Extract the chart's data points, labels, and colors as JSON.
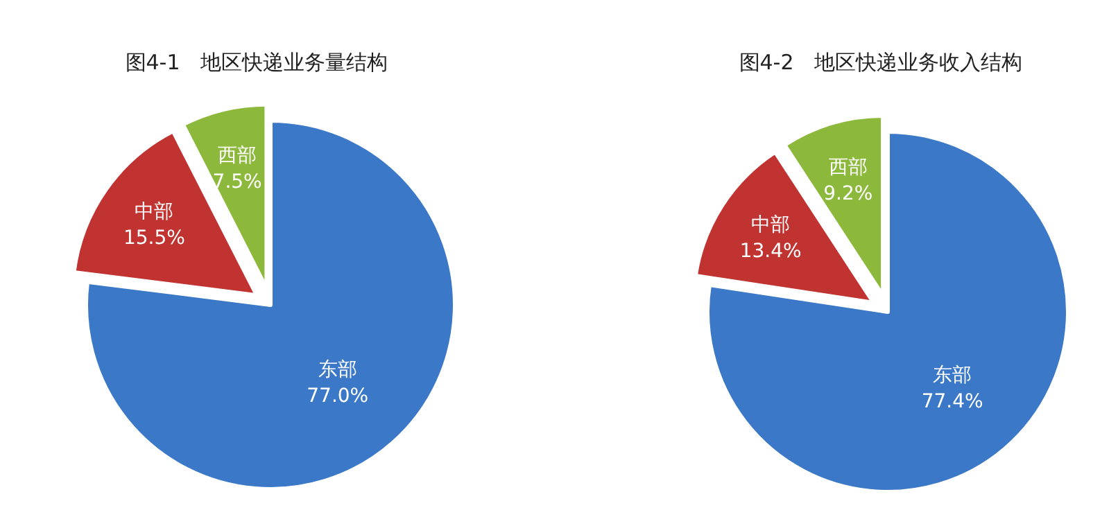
{
  "chart_data": [
    {
      "type": "pie",
      "title": "图4-1　地区快递业务量结构",
      "categories": [
        "东部",
        "中部",
        "西部"
      ],
      "values": [
        77.0,
        15.5,
        7.5
      ],
      "colors": [
        "#3b78c8",
        "#c03330",
        "#8cb83c"
      ],
      "value_labels": [
        "77.0%",
        "15.5%",
        "7.5%"
      ]
    },
    {
      "type": "pie",
      "title": "图4-2　地区快递业务收入结构",
      "categories": [
        "东部",
        "中部",
        "西部"
      ],
      "values": [
        77.4,
        13.4,
        9.2
      ],
      "colors": [
        "#3b78c8",
        "#c03330",
        "#8cb83c"
      ],
      "value_labels": [
        "77.4%",
        "13.4%",
        "9.2%"
      ]
    }
  ]
}
